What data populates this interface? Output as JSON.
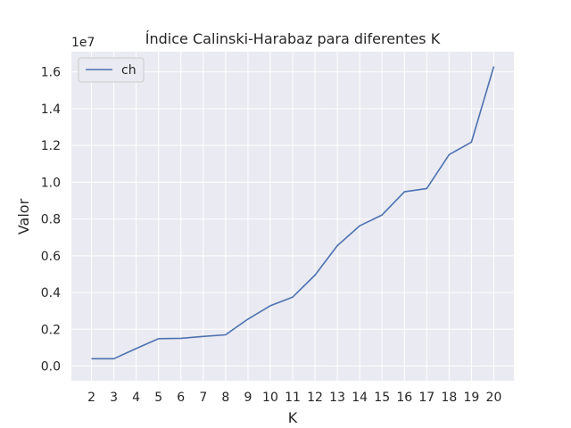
{
  "chart_data": {
    "type": "line",
    "title": "Índice Calinski-Harabaz para diferentes K",
    "xlabel": "K",
    "ylabel": "Valor",
    "y_offset_label": "1e7",
    "x": [
      2,
      3,
      4,
      5,
      6,
      7,
      8,
      9,
      10,
      11,
      12,
      13,
      14,
      15,
      16,
      17,
      18,
      19,
      20
    ],
    "xlim": [
      1.1,
      20.9
    ],
    "ylim": [
      -0.08,
      1.71
    ],
    "yticks": [
      0.0,
      0.2,
      0.4,
      0.6,
      0.8,
      1.0,
      1.2,
      1.4,
      1.6
    ],
    "ytick_labels": [
      "0.0",
      "0.2",
      "0.4",
      "0.6",
      "0.8",
      "1.0",
      "1.2",
      "1.4",
      "1.6"
    ],
    "series": [
      {
        "name": "ch",
        "color": "#4c72b0",
        "values": [
          0.04,
          0.04,
          0.095,
          0.149,
          0.151,
          0.161,
          0.17,
          0.255,
          0.328,
          0.375,
          0.495,
          0.655,
          0.763,
          0.822,
          0.948,
          0.966,
          1.15,
          1.218,
          1.63
        ]
      }
    ],
    "legend_position": "top-left",
    "grid": true,
    "background": "#eaeaf2",
    "grid_color": "#ffffff"
  }
}
